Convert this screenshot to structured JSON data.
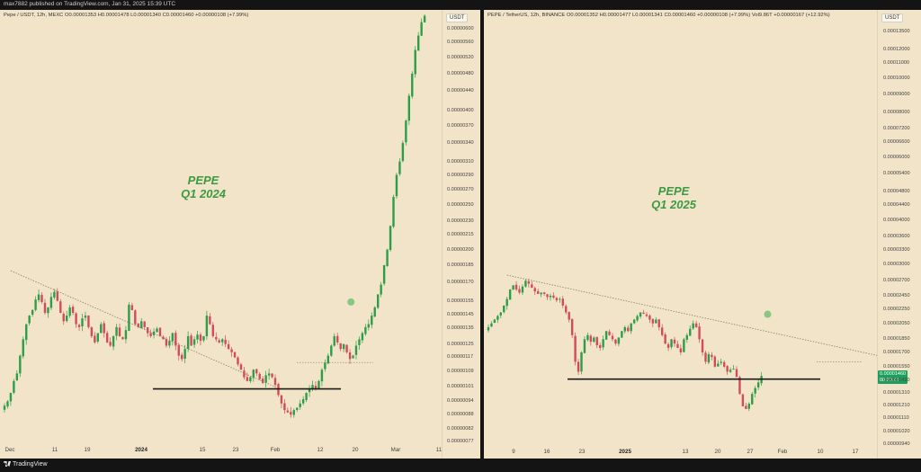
{
  "header": {
    "publisher_line": "max7882 published on TradingView.com, Jan 31, 2025 15:39 UTC"
  },
  "footer": {
    "brand": "TradingView"
  },
  "colors": {
    "background": "#f2e4c8",
    "up": "#2e9d4a",
    "down": "#d24b5a",
    "annotation": "#3d9a43",
    "price_tag": "#1b9f5a"
  },
  "chart_data": [
    {
      "type": "candlestick",
      "legend": "Pepe / USDT, 12h, MEXC  O0.00001353  H0.00001478  L0.00001340  C0.00001460  +0.00000108 (+7.99%)",
      "currency_button": "USDT",
      "annotation": [
        "PEPE",
        "Q1 2024"
      ],
      "y_scale": "log",
      "y_ticks": [
        "0.00000600",
        "0.00000560",
        "0.00000520",
        "0.00000480",
        "0.00000440",
        "0.00000400",
        "0.00000370",
        "0.00000340",
        "0.00000310",
        "0.00000290",
        "0.00000270",
        "0.00000250",
        "0.00000230",
        "0.00000215",
        "0.00000200",
        "0.00000185",
        "0.00000170",
        "0.00000155",
        "0.00000145",
        "0.00000135",
        "0.00000125",
        "0.00000117",
        "0.00000109",
        "0.00000101",
        "0.00000094",
        "0.00000088",
        "0.00000082",
        "0.00000077"
      ],
      "y_tick_values": [
        6.0,
        5.6,
        5.2,
        4.8,
        4.4,
        4.0,
        3.7,
        3.4,
        3.1,
        2.9,
        2.7,
        2.5,
        2.3,
        2.15,
        2.0,
        1.85,
        1.7,
        1.55,
        1.45,
        1.35,
        1.25,
        1.17,
        1.09,
        1.01,
        0.94,
        0.88,
        0.82,
        0.77
      ],
      "x_ticks": [
        "Dec",
        "11",
        "19",
        "2024",
        "15",
        "23",
        "Feb",
        "12",
        "20",
        "Mar",
        "11"
      ],
      "x_bold": [
        "2024"
      ],
      "series": [
        {
          "bars_per_day": 2,
          "start": "Dec 1, 2023",
          "close": [
            0.92,
            0.94,
            0.98,
            1.04,
            1.08,
            1.18,
            1.28,
            1.38,
            1.44,
            1.48,
            1.56,
            1.6,
            1.54,
            1.46,
            1.5,
            1.58,
            1.62,
            1.55,
            1.46,
            1.4,
            1.44,
            1.5,
            1.46,
            1.38,
            1.36,
            1.42,
            1.44,
            1.36,
            1.3,
            1.26,
            1.32,
            1.38,
            1.32,
            1.26,
            1.24,
            1.3,
            1.36,
            1.3,
            1.28,
            1.34,
            1.52,
            1.48,
            1.38,
            1.36,
            1.4,
            1.36,
            1.32,
            1.3,
            1.33,
            1.35,
            1.3,
            1.28,
            1.24,
            1.27,
            1.32,
            1.24,
            1.18,
            1.16,
            1.22,
            1.3,
            1.24,
            1.28,
            1.31,
            1.27,
            1.3,
            1.44,
            1.38,
            1.3,
            1.28,
            1.26,
            1.28,
            1.25,
            1.22,
            1.2,
            1.17,
            1.13,
            1.1,
            1.06,
            1.04,
            1.06,
            1.1,
            1.08,
            1.05,
            1.03,
            1.07,
            1.08,
            1.06,
            1.02,
            0.97,
            0.93,
            0.9,
            0.89,
            0.88,
            0.9,
            0.91,
            0.93,
            0.95,
            0.98,
            1.0,
            1.02,
            1.0,
            1.04,
            1.1,
            1.14,
            1.18,
            1.24,
            1.3,
            1.26,
            1.22,
            1.25,
            1.2,
            1.16,
            1.18,
            1.24,
            1.28,
            1.32,
            1.36,
            1.38,
            1.44,
            1.5,
            1.6,
            1.68,
            1.85,
            2.0,
            2.25,
            2.6,
            2.9,
            3.1,
            3.4,
            3.8,
            4.3,
            4.8,
            5.4,
            5.8,
            6.2,
            6.4
          ]
        }
      ],
      "support_level": 1.0,
      "dotted_level": 1.14,
      "trendline": {
        "from": [
          2.0,
          1.8
        ],
        "to": [
          87.0,
          1.01
        ]
      },
      "marker": [
        107.0,
        1.5
      ]
    },
    {
      "type": "candlestick",
      "legend": "PEPE / TetherUS, 12h, BINANCE  O0.00001352  H0.00001477  L0.00001341  C0.00001460  +0.00000108 (+7.99%)  Vol9.86T  +0.00000167 (+12.92%)",
      "currency_button": "USDT",
      "annotation": [
        "PEPE",
        "Q1 2025"
      ],
      "y_scale": "log",
      "y_ticks": [
        "0.00013500",
        "0.00012000",
        "0.00011000",
        "0.00010000",
        "0.00009000",
        "0.00008000",
        "0.00007200",
        "0.00006600",
        "0.00006000",
        "0.00005400",
        "0.00004800",
        "0.00004400",
        "0.00004000",
        "0.00003600",
        "0.00003300",
        "0.00003000",
        "0.00002700",
        "0.00002450",
        "0.00002250",
        "0.00002050",
        "0.00001850",
        "0.00001700",
        "0.00001550",
        "0.00001420",
        "0.00001310",
        "0.00001210",
        "0.00001110",
        "0.00001020",
        "0.00000940"
      ],
      "y_tick_values": [
        135,
        120,
        110,
        100,
        90,
        80,
        72,
        66,
        60,
        54,
        48,
        44,
        40,
        36,
        33,
        30,
        27,
        24.5,
        22.5,
        20.5,
        18.5,
        17.0,
        15.5,
        14.2,
        13.1,
        12.1,
        11.1,
        10.2,
        9.4
      ],
      "x_ticks": [
        "9",
        "16",
        "23",
        "2025",
        "13",
        "20",
        "27",
        "Feb",
        "10",
        "17"
      ],
      "x_bold": [
        "2025"
      ],
      "series": [
        {
          "bars_per_day": 2,
          "start": "Dec 5, 2024",
          "close": [
            20.0,
            20.5,
            21.0,
            21.5,
            22.0,
            23.0,
            24.0,
            25.5,
            26.2,
            25.5,
            25.0,
            26.0,
            27.0,
            26.5,
            25.8,
            25.2,
            24.8,
            25.0,
            24.8,
            24.3,
            24.5,
            24.2,
            23.8,
            24.0,
            23.0,
            22.0,
            21.0,
            19.0,
            16.0,
            15.0,
            17.0,
            18.5,
            19.0,
            18.2,
            18.7,
            17.8,
            17.5,
            18.5,
            19.5,
            19.0,
            18.5,
            18.0,
            18.7,
            19.5,
            20.0,
            19.5,
            20.5,
            21.0,
            21.5,
            22.0,
            21.8,
            21.5,
            21.0,
            20.5,
            21.0,
            20.0,
            19.0,
            18.0,
            17.5,
            18.5,
            18.0,
            17.5,
            17.0,
            18.5,
            19.0,
            19.8,
            20.5,
            20.0,
            18.5,
            17.0,
            16.0,
            16.8,
            16.5,
            15.5,
            15.8,
            16.0,
            15.5,
            15.0,
            15.2,
            15.3,
            14.5,
            13.0,
            12.0,
            11.8,
            12.2,
            13.0,
            13.5,
            14.0,
            14.6
          ]
        }
      ],
      "support_level": 14.3,
      "dotted_level": 16.0,
      "trendline": {
        "from": [
          6.0,
          28.0
        ],
        "to": [
          139.0,
          15.7
        ]
      },
      "marker": [
        90.0,
        21.0
      ],
      "price_tag": [
        "0.00001460",
        "08:20:23"
      ]
    }
  ]
}
